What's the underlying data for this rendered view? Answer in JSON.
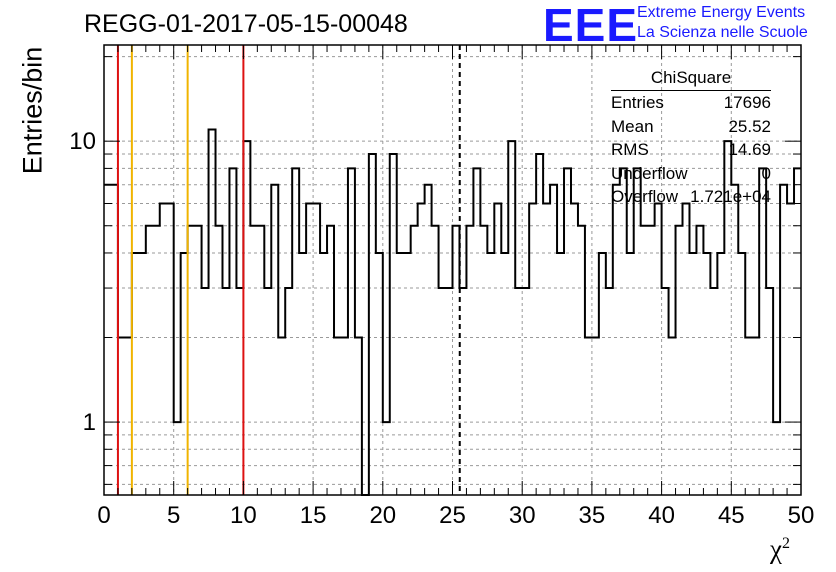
{
  "title": "REGG-01-2017-05-15-00048",
  "logo": {
    "text": "EEE",
    "line1": "Extreme Energy Events",
    "line2": "La Scienza nelle Scuole",
    "color": "#1a1aff"
  },
  "stats": {
    "title": "ChiSquare",
    "rows": [
      {
        "label": "Entries",
        "value": "17696"
      },
      {
        "label": "Mean",
        "value": "25.52"
      },
      {
        "label": "RMS",
        "value": "14.69"
      },
      {
        "label": "Underflow",
        "value": "0"
      },
      {
        "label": "Overflow",
        "value": "1.721e+04"
      }
    ]
  },
  "chart_data": {
    "type": "bar",
    "style": "step-histogram",
    "title": "REGG-01-2017-05-15-00048",
    "xlabel": "χ",
    "xlabel_sup": "2",
    "ylabel": "Entries/bin",
    "xlim": [
      0,
      50
    ],
    "ylim": [
      0.55,
      22
    ],
    "yscale": "log",
    "grid": true,
    "bin_width": 0.5,
    "xticks": [
      0,
      5,
      10,
      15,
      20,
      25,
      30,
      35,
      40,
      45,
      50
    ],
    "yticks": [
      1,
      10
    ],
    "values": [
      7,
      7,
      2,
      2,
      4,
      4,
      5,
      5,
      6,
      6,
      1,
      4,
      5,
      5,
      3,
      11,
      5,
      3,
      8,
      3,
      10,
      5,
      5,
      3,
      7,
      2,
      3,
      8,
      4,
      6,
      6,
      4,
      5,
      2,
      2,
      8,
      2,
      0,
      9,
      4,
      1,
      9,
      4,
      4,
      5,
      6,
      7,
      5,
      3,
      3,
      5,
      3,
      5,
      8,
      5,
      4,
      6,
      4,
      10,
      3,
      3,
      6,
      9,
      6,
      7,
      4,
      8,
      6,
      5,
      2,
      2,
      4,
      3,
      7,
      8,
      4,
      8,
      5,
      5,
      6,
      3,
      2,
      5,
      6,
      4,
      5,
      4,
      3,
      4,
      10,
      7,
      4,
      2,
      2,
      8,
      3,
      1,
      7,
      6,
      8
    ],
    "markers": [
      {
        "x": 1,
        "color": "#dd1111",
        "style": "solid"
      },
      {
        "x": 2,
        "color": "#f0b400",
        "style": "solid"
      },
      {
        "x": 6,
        "color": "#f0b400",
        "style": "solid"
      },
      {
        "x": 10,
        "color": "#dd1111",
        "style": "solid"
      },
      {
        "x": 25.52,
        "color": "#000000",
        "style": "dashed"
      }
    ]
  }
}
